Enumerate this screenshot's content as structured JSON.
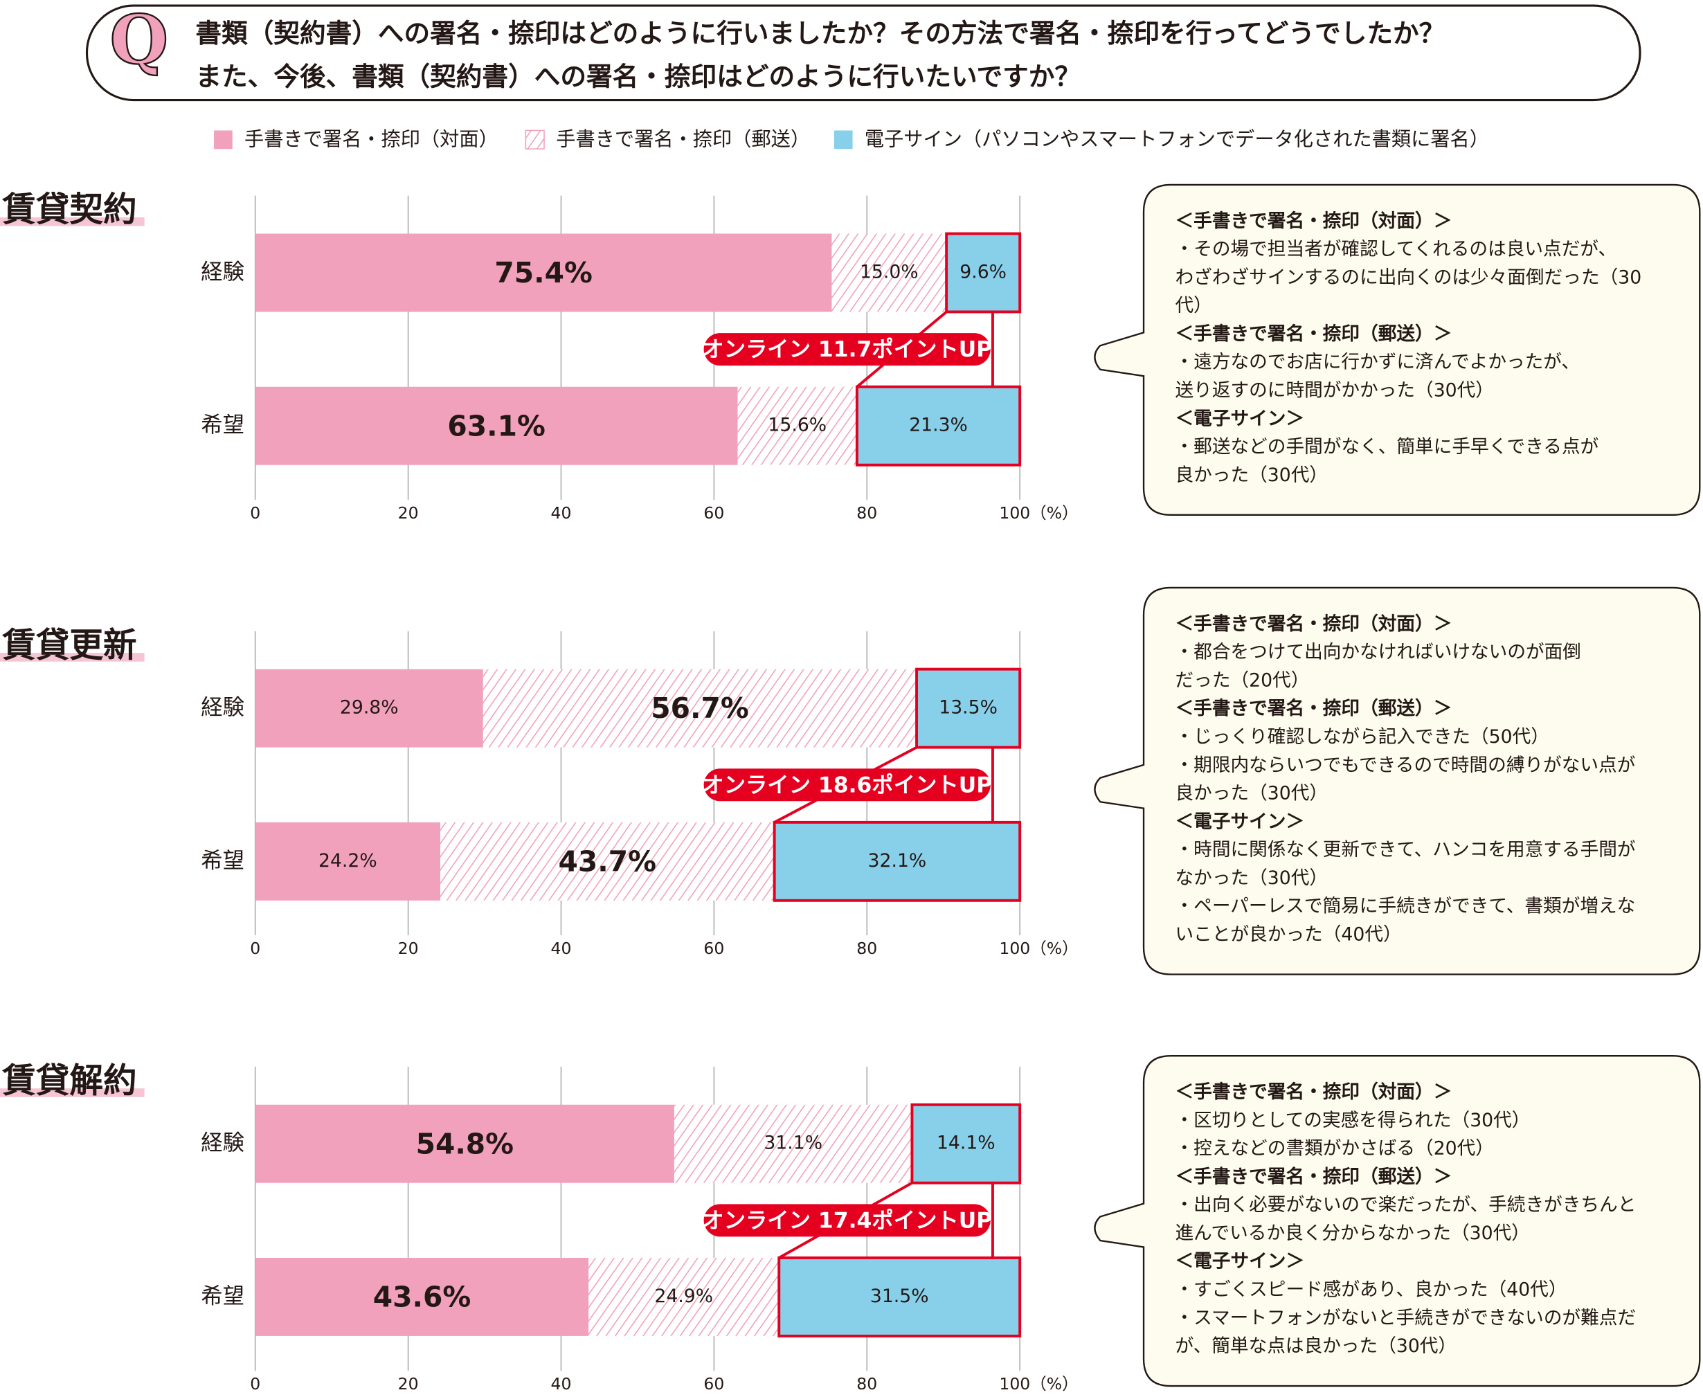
{
  "question": [
    "書類（契約書）への署名・捺印はどのように行いましたか？その方法で署名・捺印を行ってどうでしたか？",
    "また、今後、書類（契約書）への署名・捺印はどのように行いたいですか？"
  ],
  "chart_data": [
    {
      "type": "stacked-bar",
      "title": "賃貸契約",
      "categories": [
        "経験",
        "希望"
      ],
      "series": [
        {
          "name": "手書きで署名・捺印（対面）",
          "color": "#f1a1bc",
          "values": [
            75.4,
            63.1
          ],
          "value_labels": [
            "75.4%",
            "63.1%"
          ]
        },
        {
          "name": "手書きで署名・捺印（郵送）",
          "color": "#f1a1bc",
          "pattern": "hatch",
          "values": [
            15.0,
            15.6
          ],
          "value_labels": [
            "15.0%",
            "15.6%"
          ]
        },
        {
          "name": "電子サイン（パソコンやスマートフォンでデータ化された書類に署名）",
          "color": "#88d0ea",
          "values": [
            9.6,
            21.3
          ],
          "value_labels": [
            "9.6%",
            "21.3%"
          ]
        }
      ],
      "xlim": [
        0,
        100
      ],
      "xticks": [
        0,
        20,
        40,
        60,
        80,
        {
          "value": 100,
          "label": "100（%）"
        }
      ],
      "grid": true,
      "annotation": "オンライン 11.7ポイントUP",
      "comments": [
        "＜手書きで署名・捺印（対面）＞",
        "・その場で担当者が確認してくれるのは良い点だが、",
        "わざわざサインするのに出向くのは少々面倒だった（30",
        "代）",
        "＜手書きで署名・捺印（郵送）＞",
        "・遠方なのでお店に行かずに済んでよかったが、",
        "送り返すのに時間がかかった（30代）",
        "＜電子サイン＞",
        "・郵送などの手間がなく、簡単に手早くできる点が",
        "良かった（30代）"
      ]
    },
    {
      "type": "stacked-bar",
      "title": "賃貸更新",
      "categories": [
        "経験",
        "希望"
      ],
      "series": [
        {
          "name": "手書きで署名・捺印（対面）",
          "color": "#f1a1bc",
          "values": [
            29.8,
            24.2
          ],
          "value_labels": [
            "29.8%",
            "24.2%"
          ]
        },
        {
          "name": "手書きで署名・捺印（郵送）",
          "color": "#f1a1bc",
          "pattern": "hatch",
          "values": [
            56.7,
            43.7
          ],
          "value_labels": [
            "56.7%",
            "43.7%"
          ]
        },
        {
          "name": "電子サイン（パソコンやスマートフォンでデータ化された書類に署名）",
          "color": "#88d0ea",
          "values": [
            13.5,
            32.1
          ],
          "value_labels": [
            "13.5%",
            "32.1%"
          ]
        }
      ],
      "xlim": [
        0,
        100
      ],
      "xticks": [
        0,
        20,
        40,
        60,
        80,
        {
          "value": 100,
          "label": "100（%）"
        }
      ],
      "grid": true,
      "annotation": "オンライン 18.6ポイントUP",
      "comments": [
        "＜手書きで署名・捺印（対面）＞",
        "・都合をつけて出向かなければいけないのが面倒",
        "だった（20代）",
        "＜手書きで署名・捺印（郵送）＞",
        "・じっくり確認しながら記入できた（50代）",
        "・期限内ならいつでもできるので時間の縛りがない点が",
        "良かった（30代）",
        "＜電子サイン＞",
        "・時間に関係なく更新できて、ハンコを用意する手間が",
        "なかった（30代）",
        "・ペーパーレスで簡易に手続きができて、書類が増えな",
        "いことが良かった（40代）"
      ]
    },
    {
      "type": "stacked-bar",
      "title": "賃貸解約",
      "categories": [
        "経験",
        "希望"
      ],
      "series": [
        {
          "name": "手書きで署名・捺印（対面）",
          "color": "#f1a1bc",
          "values": [
            54.8,
            43.6
          ],
          "value_labels": [
            "54.8%",
            "43.6%"
          ]
        },
        {
          "name": "手書きで署名・捺印（郵送）",
          "color": "#f1a1bc",
          "pattern": "hatch",
          "values": [
            31.1,
            24.9
          ],
          "value_labels": [
            "31.1%",
            "24.9%"
          ]
        },
        {
          "name": "電子サイン（パソコンやスマートフォンでデータ化された書類に署名）",
          "color": "#88d0ea",
          "values": [
            14.1,
            31.5
          ],
          "value_labels": [
            "14.1%",
            "31.5%"
          ]
        }
      ],
      "xlim": [
        0,
        100
      ],
      "xticks": [
        0,
        20,
        40,
        60,
        80,
        {
          "value": 100,
          "label": "100（%）"
        }
      ],
      "grid": true,
      "annotation": "オンライン 17.4ポイントUP",
      "comments": [
        "＜手書きで署名・捺印（対面）＞",
        "・区切りとしての実感を得られた（30代）",
        "・控えなどの書類がかさばる（20代）",
        "＜手書きで署名・捺印（郵送）＞",
        "・出向く必要がないので楽だったが、手続きがきちんと",
        "進んでいるか良く分からなかった（30代）",
        "＜電子サイン＞",
        "・すごくスピード感があり、良かった（40代）",
        "・スマートフォンがないと手続きができないのが難点だ",
        "が、簡単な点は良かった（30代）"
      ]
    }
  ]
}
